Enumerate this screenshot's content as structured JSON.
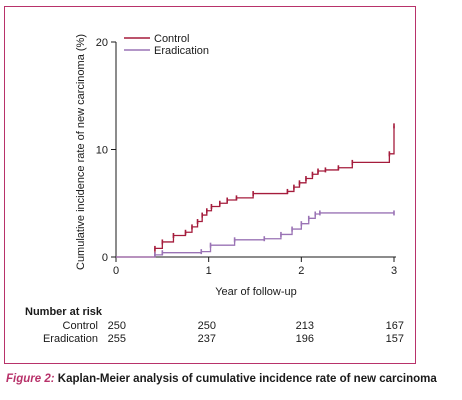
{
  "figure": {
    "caption_label": "Figure 2:",
    "caption_text": "Kaplan-Meier analysis of cumulative incidence rate of new carcinoma"
  },
  "colors": {
    "frame": "#b8326a",
    "control": "#a51c3c",
    "eradication": "#9a73b5",
    "axis": "#1a1a1a"
  },
  "risk_table": {
    "title": "Number at risk",
    "rows": [
      {
        "label": "Control",
        "values": [
          "250",
          "250",
          "213",
          "167"
        ]
      },
      {
        "label": "Eradication",
        "values": [
          "255",
          "237",
          "196",
          "157"
        ]
      }
    ]
  },
  "chart_data": {
    "type": "line",
    "step": true,
    "xlabel": "Year of follow-up",
    "ylabel": "Cumulative incidence rate of new carcinoma (%)",
    "xlim": [
      0,
      3
    ],
    "ylim": [
      0,
      20
    ],
    "xticks": [
      0,
      1,
      2,
      3
    ],
    "yticks": [
      0,
      10,
      20
    ],
    "grid": false,
    "legend_position": "top-right",
    "series": [
      {
        "name": "Control",
        "x": [
          0,
          0.42,
          0.5,
          0.62,
          0.75,
          0.82,
          0.88,
          0.93,
          0.98,
          1.03,
          1.12,
          1.2,
          1.3,
          1.48,
          1.85,
          1.92,
          1.98,
          2.05,
          2.12,
          2.18,
          2.26,
          2.4,
          2.55,
          2.95,
          3.0
        ],
        "y": [
          0,
          0.8,
          1.4,
          2.0,
          2.3,
          2.8,
          3.3,
          3.9,
          4.3,
          4.7,
          5.0,
          5.3,
          5.5,
          5.9,
          6.1,
          6.5,
          6.9,
          7.3,
          7.7,
          8.0,
          8.1,
          8.3,
          8.8,
          9.6,
          12.2
        ]
      },
      {
        "name": "Eradication",
        "x": [
          0,
          0.42,
          0.5,
          0.92,
          1.02,
          1.28,
          1.6,
          1.78,
          1.9,
          2.0,
          2.08,
          2.15,
          2.2,
          3.0
        ],
        "y": [
          0,
          0.2,
          0.4,
          0.5,
          1.1,
          1.6,
          1.7,
          2.1,
          2.6,
          3.1,
          3.6,
          4.0,
          4.1,
          4.1
        ]
      }
    ]
  }
}
